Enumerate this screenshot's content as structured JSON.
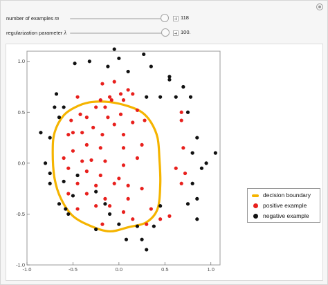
{
  "controls": [
    {
      "label": "number of examples",
      "symbol": "m",
      "value": "118",
      "fraction": 0.98
    },
    {
      "label": "regularization parameter",
      "symbol": "λ",
      "value": "100.",
      "fraction": 0.985
    }
  ],
  "chart_data": {
    "type": "scatter",
    "xlim": [
      -1.0,
      1.1
    ],
    "ylim": [
      -1.0,
      1.1
    ],
    "x_ticks": [
      "-1.0",
      "-0.5",
      "0.0",
      "0.5",
      "1.0"
    ],
    "y_ticks": [
      "-1.0",
      "-0.5",
      "0.0",
      "0.5",
      "1.0"
    ],
    "x_tick_values": [
      -1.0,
      -0.5,
      0.0,
      0.5,
      1.0
    ],
    "y_tick_values": [
      -1.0,
      -0.5,
      0.0,
      0.5,
      1.0
    ],
    "grid": false,
    "legend_position": "right",
    "colors": {
      "boundary": "#f5b400",
      "positive": "#e8201d",
      "negative": "#111111"
    },
    "series": [
      {
        "name": "decision boundary",
        "kind": "closed-curve",
        "points": [
          [
            -0.3,
            0.6
          ],
          [
            -0.1,
            0.6
          ],
          [
            0.1,
            0.56
          ],
          [
            0.25,
            0.5
          ],
          [
            0.35,
            0.4
          ],
          [
            0.42,
            0.25
          ],
          [
            0.44,
            0.05
          ],
          [
            0.45,
            -0.2
          ],
          [
            0.42,
            -0.45
          ],
          [
            0.3,
            -0.58
          ],
          [
            0.1,
            -0.63
          ],
          [
            -0.1,
            -0.67
          ],
          [
            -0.3,
            -0.62
          ],
          [
            -0.5,
            -0.52
          ],
          [
            -0.63,
            -0.35
          ],
          [
            -0.7,
            -0.15
          ],
          [
            -0.72,
            0.1
          ],
          [
            -0.7,
            0.3
          ],
          [
            -0.6,
            0.47
          ],
          [
            -0.45,
            0.56
          ]
        ]
      },
      {
        "name": "positive example",
        "kind": "points",
        "points": [
          [
            -0.18,
            0.78
          ],
          [
            -0.05,
            0.8
          ],
          [
            0.1,
            0.72
          ],
          [
            -0.2,
            0.62
          ],
          [
            -0.08,
            0.62
          ],
          [
            0.05,
            0.62
          ],
          [
            -0.25,
            0.55
          ],
          [
            -0.15,
            0.55
          ],
          [
            -0.35,
            0.45
          ],
          [
            -0.12,
            0.45
          ],
          [
            0.02,
            0.48
          ],
          [
            0.2,
            0.52
          ],
          [
            0.28,
            0.42
          ],
          [
            -0.52,
            0.42
          ],
          [
            -0.42,
            0.48
          ],
          [
            -0.28,
            0.35
          ],
          [
            -0.05,
            0.38
          ],
          [
            0.15,
            0.4
          ],
          [
            -0.55,
            0.28
          ],
          [
            -0.4,
            0.3
          ],
          [
            -0.18,
            0.28
          ],
          [
            0.05,
            0.28
          ],
          [
            -0.5,
            0.12
          ],
          [
            -0.35,
            0.18
          ],
          [
            -0.2,
            0.15
          ],
          [
            0.05,
            0.15
          ],
          [
            0.25,
            0.18
          ],
          [
            -0.6,
            0.05
          ],
          [
            -0.4,
            0.02
          ],
          [
            -0.3,
            0.03
          ],
          [
            -0.15,
            0.02
          ],
          [
            0.05,
            -0.02
          ],
          [
            0.2,
            0.05
          ],
          [
            -0.55,
            -0.05
          ],
          [
            -0.35,
            -0.08
          ],
          [
            -0.2,
            -0.12
          ],
          [
            0.0,
            -0.15
          ],
          [
            -0.45,
            -0.2
          ],
          [
            -0.25,
            -0.22
          ],
          [
            -0.05,
            -0.2
          ],
          [
            0.1,
            -0.22
          ],
          [
            -0.55,
            -0.3
          ],
          [
            -0.35,
            -0.3
          ],
          [
            -0.15,
            -0.35
          ],
          [
            0.1,
            -0.35
          ],
          [
            0.25,
            -0.25
          ],
          [
            -0.45,
            -0.45
          ],
          [
            -0.25,
            -0.42
          ],
          [
            -0.1,
            -0.42
          ],
          [
            0.05,
            -0.48
          ],
          [
            0.15,
            -0.55
          ],
          [
            0.3,
            -0.6
          ],
          [
            -0.18,
            -0.6
          ],
          [
            0.35,
            -0.45
          ],
          [
            0.45,
            -0.55
          ],
          [
            0.55,
            -0.52
          ],
          [
            0.68,
            0.5
          ],
          [
            0.68,
            0.42
          ],
          [
            0.7,
            0.15
          ],
          [
            0.72,
            -0.1
          ],
          [
            0.62,
            -0.05
          ],
          [
            0.68,
            -0.2
          ],
          [
            -0.1,
            0.65
          ],
          [
            0.02,
            0.68
          ],
          [
            0.15,
            0.68
          ],
          [
            -0.45,
            0.65
          ],
          [
            -0.5,
            0.3
          ]
        ]
      },
      {
        "name": "negative example",
        "kind": "points",
        "points": [
          [
            -0.05,
            1.12
          ],
          [
            0.0,
            1.03
          ],
          [
            -0.32,
            1.0
          ],
          [
            0.27,
            1.07
          ],
          [
            -0.48,
            0.98
          ],
          [
            -0.12,
            0.95
          ],
          [
            0.1,
            0.9
          ],
          [
            0.35,
            0.95
          ],
          [
            0.55,
            0.82
          ],
          [
            -0.68,
            0.68
          ],
          [
            0.62,
            0.65
          ],
          [
            0.7,
            0.75
          ],
          [
            0.78,
            0.65
          ],
          [
            -0.6,
            0.55
          ],
          [
            0.3,
            0.65
          ],
          [
            0.45,
            0.65
          ],
          [
            -0.65,
            0.45
          ],
          [
            0.75,
            0.5
          ],
          [
            -0.85,
            0.3
          ],
          [
            -0.75,
            0.25
          ],
          [
            0.85,
            0.25
          ],
          [
            0.8,
            0.1
          ],
          [
            -0.8,
            0.0
          ],
          [
            -0.75,
            -0.1
          ],
          [
            1.05,
            0.1
          ],
          [
            0.9,
            -0.05
          ],
          [
            0.95,
            0.0
          ],
          [
            -0.75,
            -0.2
          ],
          [
            -0.6,
            -0.18
          ],
          [
            -0.45,
            -0.12
          ],
          [
            -0.5,
            -0.32
          ],
          [
            0.8,
            -0.2
          ],
          [
            0.75,
            -0.4
          ],
          [
            -0.65,
            -0.4
          ],
          [
            -0.55,
            -0.5
          ],
          [
            -0.25,
            -0.28
          ],
          [
            -0.15,
            -0.4
          ],
          [
            0.85,
            -0.55
          ],
          [
            0.25,
            -0.75
          ],
          [
            -0.25,
            -0.65
          ],
          [
            0.08,
            -0.75
          ],
          [
            0.3,
            -0.85
          ],
          [
            0.45,
            -0.42
          ],
          [
            -0.1,
            -0.5
          ],
          [
            0.0,
            -0.6
          ],
          [
            0.38,
            -0.62
          ],
          [
            0.2,
            -0.62
          ],
          [
            -0.58,
            -0.45
          ],
          [
            0.85,
            -0.35
          ],
          [
            -0.7,
            0.55
          ],
          [
            0.55,
            0.85
          ]
        ]
      }
    ],
    "legend": [
      "decision boundary",
      "positive example",
      "negative example"
    ]
  }
}
